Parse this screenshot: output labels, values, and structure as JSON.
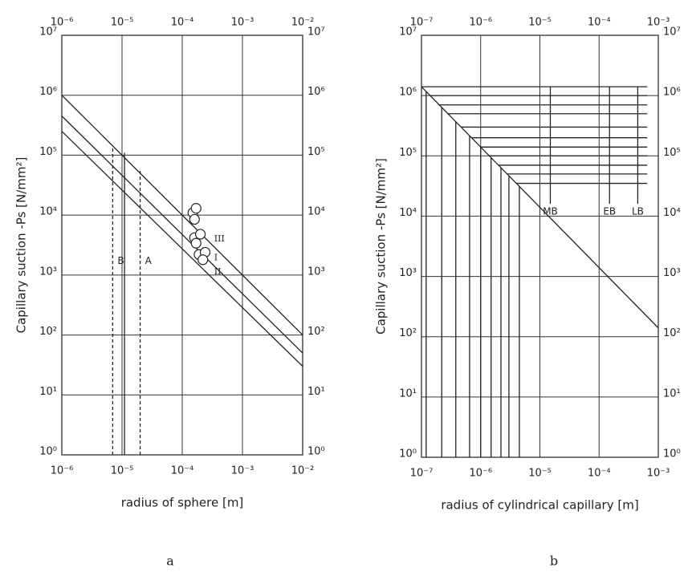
{
  "chart_data": [
    {
      "type": "line",
      "caption": "a",
      "xlabel": "radius of sphere [m]",
      "ylabel": "Capillary suction -Ps [N/mm²]",
      "xscale": "log",
      "yscale": "log",
      "grid": true,
      "xlim": [
        1e-06,
        0.01
      ],
      "ylim": [
        1,
        10000000
      ],
      "xticks": [
        {
          "value": 1e-06,
          "label": "10⁻⁶"
        },
        {
          "value": 1e-05,
          "label": "10⁻⁵"
        },
        {
          "value": 0.0001,
          "label": "10⁻⁴"
        },
        {
          "value": 0.001,
          "label": "10⁻³"
        },
        {
          "value": 0.01,
          "label": "10⁻²"
        }
      ],
      "yticks": [
        {
          "value": 1,
          "label": "10⁰"
        },
        {
          "value": 10,
          "label": "10¹"
        },
        {
          "value": 100,
          "label": "10²"
        },
        {
          "value": 1000,
          "label": "10³"
        },
        {
          "value": 10000,
          "label": "10⁴"
        },
        {
          "value": 100000,
          "label": "10⁵"
        },
        {
          "value": 1000000,
          "label": "10⁶"
        },
        {
          "value": 10000000,
          "label": "10⁷"
        }
      ],
      "series": [
        {
          "name": "III",
          "x": [
            1e-06,
            0.01
          ],
          "values": [
            1000000,
            100
          ]
        },
        {
          "name": "I",
          "x": [
            1e-06,
            0.01
          ],
          "values": [
            450000,
            50
          ]
        },
        {
          "name": "II",
          "x": [
            1e-06,
            0.01
          ],
          "values": [
            250000,
            30
          ]
        }
      ],
      "vertical_lines": [
        {
          "name": "B",
          "x": 7e-06,
          "values": [
            1,
            130000
          ],
          "dashed": true
        },
        {
          "name": "A",
          "x": 2e-05,
          "values": [
            1,
            60000
          ],
          "dashed": true
        },
        {
          "x": 1.1e-05,
          "values": [
            1,
            110000
          ],
          "dashed": false
        }
      ],
      "circles": {
        "x": [
          0.00015,
          0.00017,
          0.00016,
          0.00016,
          0.0002,
          0.00017,
          0.00019,
          0.00024,
          0.00022
        ],
        "values": [
          11000,
          13000,
          8500,
          4200,
          4800,
          3400,
          2200,
          2400,
          1800
        ]
      }
    },
    {
      "type": "line",
      "caption": "b",
      "xlabel": "radius of cylindrical capillary [m]",
      "ylabel": "Capillary suction -Ps [N/mm²]",
      "xscale": "log",
      "yscale": "log",
      "grid": true,
      "xlim": [
        1e-07,
        0.001
      ],
      "ylim": [
        1,
        10000000
      ],
      "xticks": [
        {
          "value": 1e-07,
          "label": "10⁻⁷"
        },
        {
          "value": 1e-06,
          "label": "10⁻⁶"
        },
        {
          "value": 1e-05,
          "label": "10⁻⁵"
        },
        {
          "value": 0.0001,
          "label": "10⁻⁴"
        },
        {
          "value": 0.001,
          "label": "10⁻³"
        }
      ],
      "yticks": [
        {
          "value": 1,
          "label": "10⁰"
        },
        {
          "value": 10,
          "label": "10¹"
        },
        {
          "value": 100,
          "label": "10²"
        },
        {
          "value": 1000,
          "label": "10³"
        },
        {
          "value": 10000,
          "label": "10⁴"
        },
        {
          "value": 100000,
          "label": "10⁵"
        },
        {
          "value": 1000000,
          "label": "10⁶"
        },
        {
          "value": 10000000,
          "label": "10⁷"
        }
      ],
      "series": [
        {
          "x": [
            1e-07,
            0.001
          ],
          "values": [
            1400000,
            140
          ]
        }
      ],
      "verticals_to_line": [
        1.2e-07,
        2.2e-07,
        3.8e-07,
        6.5e-07,
        1e-06,
        1.5e-06,
        2.2e-06,
        3e-06,
        4.5e-06
      ],
      "horizontal_lines": {
        "values": [
          1400000,
          1000000,
          700000,
          500000,
          300000,
          200000,
          140000,
          100000,
          70000,
          50000,
          35000
        ],
        "x_end": 0.00065
      },
      "markers": [
        {
          "name": "MB",
          "x": 1.5e-05,
          "values": [
            16000,
            1400000
          ]
        },
        {
          "name": "EB",
          "x": 0.00015,
          "values": [
            16000,
            1400000
          ]
        },
        {
          "name": "LB",
          "x": 0.00045,
          "values": [
            16000,
            1400000
          ]
        }
      ]
    }
  ]
}
